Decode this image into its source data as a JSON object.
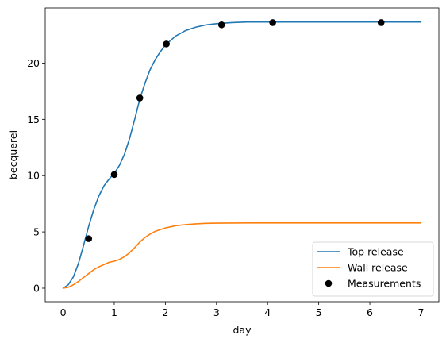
{
  "chart_data": {
    "type": "line",
    "xlabel": "day",
    "ylabel": "becquerel",
    "xlim": [
      -0.35,
      7.35
    ],
    "ylim": [
      -1.2,
      24.9
    ],
    "xticks": [
      "0",
      "1",
      "2",
      "3",
      "4",
      "5",
      "6",
      "7"
    ],
    "yticks": [
      "0",
      "5",
      "10",
      "15",
      "20"
    ],
    "legend_position": "lower-right",
    "grid": false,
    "series": [
      {
        "name": "Top release",
        "kind": "line",
        "color": "#1f77b4",
        "x": [
          0,
          0.1,
          0.2,
          0.3,
          0.4,
          0.5,
          0.6,
          0.7,
          0.8,
          0.9,
          1.0,
          1.1,
          1.2,
          1.3,
          1.4,
          1.5,
          1.6,
          1.7,
          1.8,
          1.9,
          2.0,
          2.2,
          2.4,
          2.6,
          2.8,
          3.0,
          3.3,
          3.6,
          4.0,
          4.5,
          5.0,
          5.5,
          6.0,
          6.5,
          7.0
        ],
        "y": [
          0,
          0.3,
          1.0,
          2.2,
          3.8,
          5.5,
          7.0,
          8.2,
          9.1,
          9.7,
          10.2,
          10.9,
          11.9,
          13.3,
          15.0,
          16.8,
          18.2,
          19.4,
          20.3,
          21.0,
          21.6,
          22.4,
          22.9,
          23.2,
          23.4,
          23.5,
          23.6,
          23.65,
          23.65,
          23.65,
          23.65,
          23.65,
          23.65,
          23.65,
          23.65
        ]
      },
      {
        "name": "Wall release",
        "kind": "line",
        "color": "#ff7f0e",
        "x": [
          0,
          0.1,
          0.2,
          0.3,
          0.4,
          0.5,
          0.6,
          0.7,
          0.8,
          0.9,
          1.0,
          1.1,
          1.2,
          1.3,
          1.4,
          1.5,
          1.6,
          1.7,
          1.8,
          1.9,
          2.0,
          2.2,
          2.4,
          2.6,
          2.8,
          3.0,
          3.3,
          3.6,
          4.0,
          4.5,
          5.0,
          5.5,
          6.0,
          6.5,
          7.0
        ],
        "y": [
          0,
          0.08,
          0.3,
          0.6,
          0.95,
          1.3,
          1.65,
          1.9,
          2.1,
          2.3,
          2.4,
          2.55,
          2.8,
          3.15,
          3.6,
          4.1,
          4.5,
          4.8,
          5.05,
          5.2,
          5.35,
          5.55,
          5.65,
          5.72,
          5.76,
          5.78,
          5.79,
          5.8,
          5.8,
          5.8,
          5.8,
          5.8,
          5.8,
          5.8,
          5.8
        ]
      },
      {
        "name": "Measurements",
        "kind": "scatter",
        "color": "#000000",
        "x": [
          0.5,
          1.0,
          1.5,
          2.02,
          3.1,
          4.1,
          6.22
        ],
        "y": [
          4.4,
          10.1,
          16.9,
          21.7,
          23.4,
          23.6,
          23.6
        ]
      }
    ]
  }
}
